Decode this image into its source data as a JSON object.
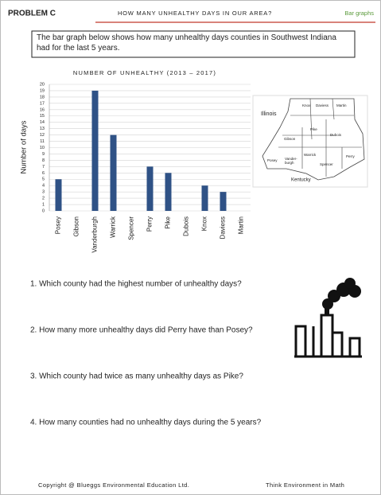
{
  "header": {
    "problem": "PROBLEM C",
    "title": "HOW MANY UNHEALTHY DAYS IN OUR AREA?",
    "tag": "Bar graphs"
  },
  "intro": "The bar graph below shows how many unhealthy days counties in Southwest Indiana had for the last 5 years.",
  "chart_data": {
    "type": "bar",
    "title": "NUMBER OF UNHEALTHY (2013 – 2017)",
    "y_label": "Number of days",
    "categories": [
      "Posey",
      "Gibson",
      "Vanderburgh",
      "Warrick",
      "Spencer",
      "Perry",
      "Pike",
      "Dubois",
      "Knox",
      "Daviess",
      "Martin"
    ],
    "values": [
      5,
      0,
      19,
      12,
      0,
      7,
      6,
      0,
      4,
      3,
      0
    ],
    "color": "#2f5286",
    "ylim": [
      0,
      20
    ],
    "yticks": [
      0,
      1,
      2,
      3,
      4,
      5,
      6,
      7,
      8,
      9,
      10,
      11,
      12,
      13,
      14,
      15,
      16,
      17,
      18,
      19,
      20
    ],
    "grid": true
  },
  "map": {
    "labels": [
      "Illinois",
      "Knox",
      "Daviess",
      "Martin",
      "Pike",
      "Dubois",
      "Gibson",
      "Warrick",
      "Posey",
      "Vander-",
      "burgh",
      "Spencer",
      "Perry",
      "Kentucky"
    ]
  },
  "questions": [
    "1. Which county had the highest number of unhealthy days?",
    "2. How many more unhealthy days did Perry have than Posey?",
    "3. Which county had twice as many unhealthy days as Pike?",
    "4. How many counties had no unhealthy days during the 5 years?"
  ],
  "footer": {
    "left": "Copyright @ Blueggs Environmental Education Ltd.",
    "right": "Think Environment in Math"
  }
}
